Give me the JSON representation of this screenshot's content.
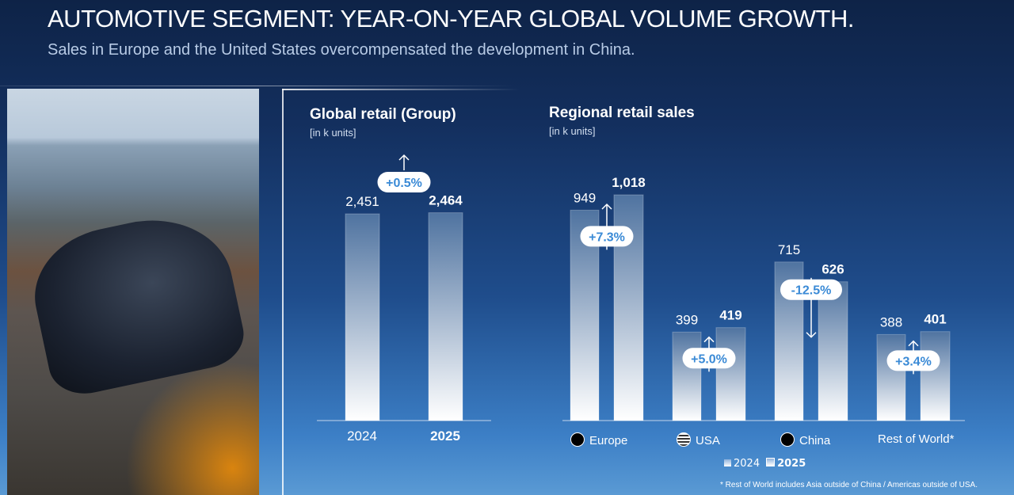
{
  "title": "AUTOMOTIVE SEGMENT: YEAR-ON-YEAR GLOBAL VOLUME GROWTH.",
  "subtitle": "Sales in Europe and the United States overcompensated the development in China.",
  "footnote": "* Rest of World includes Asia outside of China / Americas outside of USA.",
  "legend": {
    "y2024": "2024",
    "y2025": "2025"
  },
  "colors": {
    "bar_top": "#4f73a0",
    "bar_bottom": "#ffffff",
    "badge_text": "#3a8ad6"
  },
  "chart_data": [
    {
      "type": "bar",
      "title": "Global retail (Group)",
      "unit": "[in k units]",
      "categories": [
        "2024",
        "2025"
      ],
      "values": [
        2451,
        2464
      ],
      "labels": [
        "2,451",
        "2,464"
      ],
      "change": "+0.5%",
      "direction": "up"
    },
    {
      "type": "bar",
      "title": "Regional retail sales",
      "unit": "[in k units]",
      "categories": [
        "Europe",
        "USA",
        "China",
        "Rest of World*"
      ],
      "series": [
        {
          "name": "2024",
          "values": [
            949,
            399,
            715,
            388
          ],
          "labels": [
            "949",
            "399",
            "715",
            "388"
          ]
        },
        {
          "name": "2025",
          "values": [
            1018,
            419,
            626,
            401
          ],
          "labels": [
            "1,018",
            "419",
            "626",
            "401"
          ]
        }
      ],
      "changes": [
        "+7.3%",
        "+5.0%",
        "-12.5%",
        "+3.4%"
      ],
      "directions": [
        "up",
        "up",
        "down",
        "up"
      ],
      "icons": [
        "eu-flag-icon",
        "us-flag-icon",
        "china-flag-icon",
        ""
      ]
    }
  ]
}
